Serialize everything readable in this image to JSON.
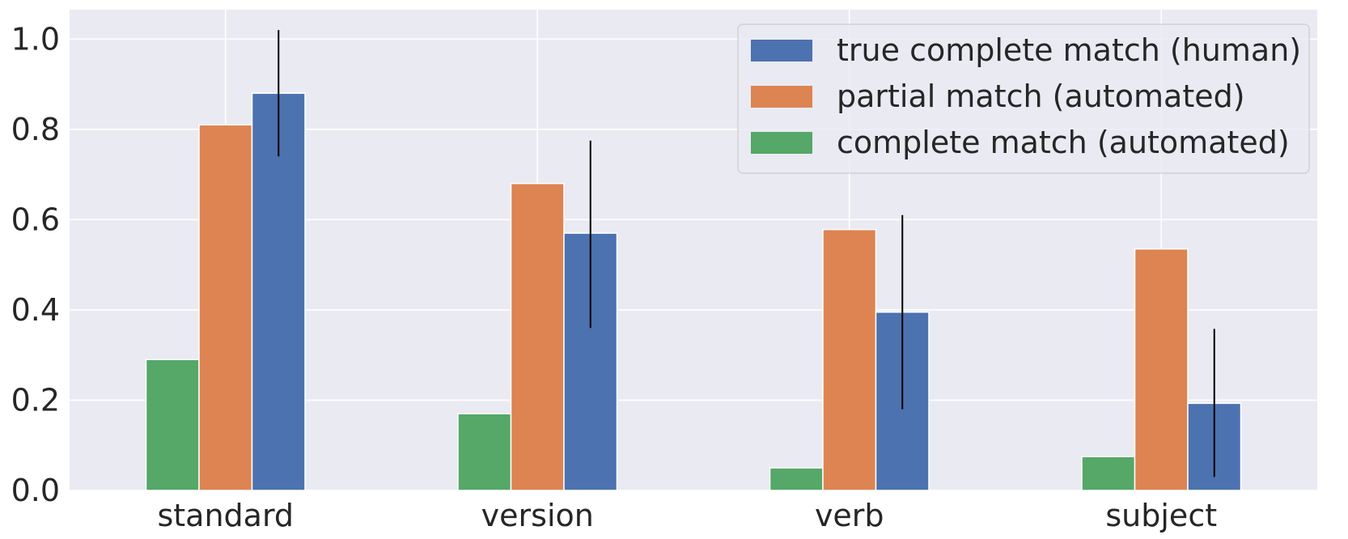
{
  "chart_data": {
    "type": "bar",
    "categories": [
      "standard",
      "version",
      "verb",
      "subject"
    ],
    "series": [
      {
        "name": "complete match (automated)",
        "values": [
          0.29,
          0.17,
          0.05,
          0.075
        ],
        "color": "#55a868"
      },
      {
        "name": "partial match (automated)",
        "values": [
          0.81,
          0.68,
          0.578,
          0.535
        ],
        "color": "#dd8452"
      },
      {
        "name": "true complete match (human)",
        "values": [
          0.88,
          0.57,
          0.395,
          0.193
        ],
        "color": "#4c72b0",
        "error": [
          [
            0.74,
            1.02
          ],
          [
            0.36,
            0.775
          ],
          [
            0.18,
            0.61
          ],
          [
            0.03,
            0.358
          ]
        ]
      }
    ],
    "legend_order": [
      2,
      1,
      0
    ],
    "title": "",
    "xlabel": "",
    "ylabel": "",
    "ylim": [
      0,
      1.065
    ],
    "yticks": [
      0.0,
      0.2,
      0.4,
      0.6,
      0.8,
      1.0
    ],
    "ytick_labels": [
      "0.0",
      "0.2",
      "0.4",
      "0.6",
      "0.8",
      "1.0"
    ],
    "grid": true,
    "legend_position": "top-right",
    "background": "#eaeaf2"
  }
}
